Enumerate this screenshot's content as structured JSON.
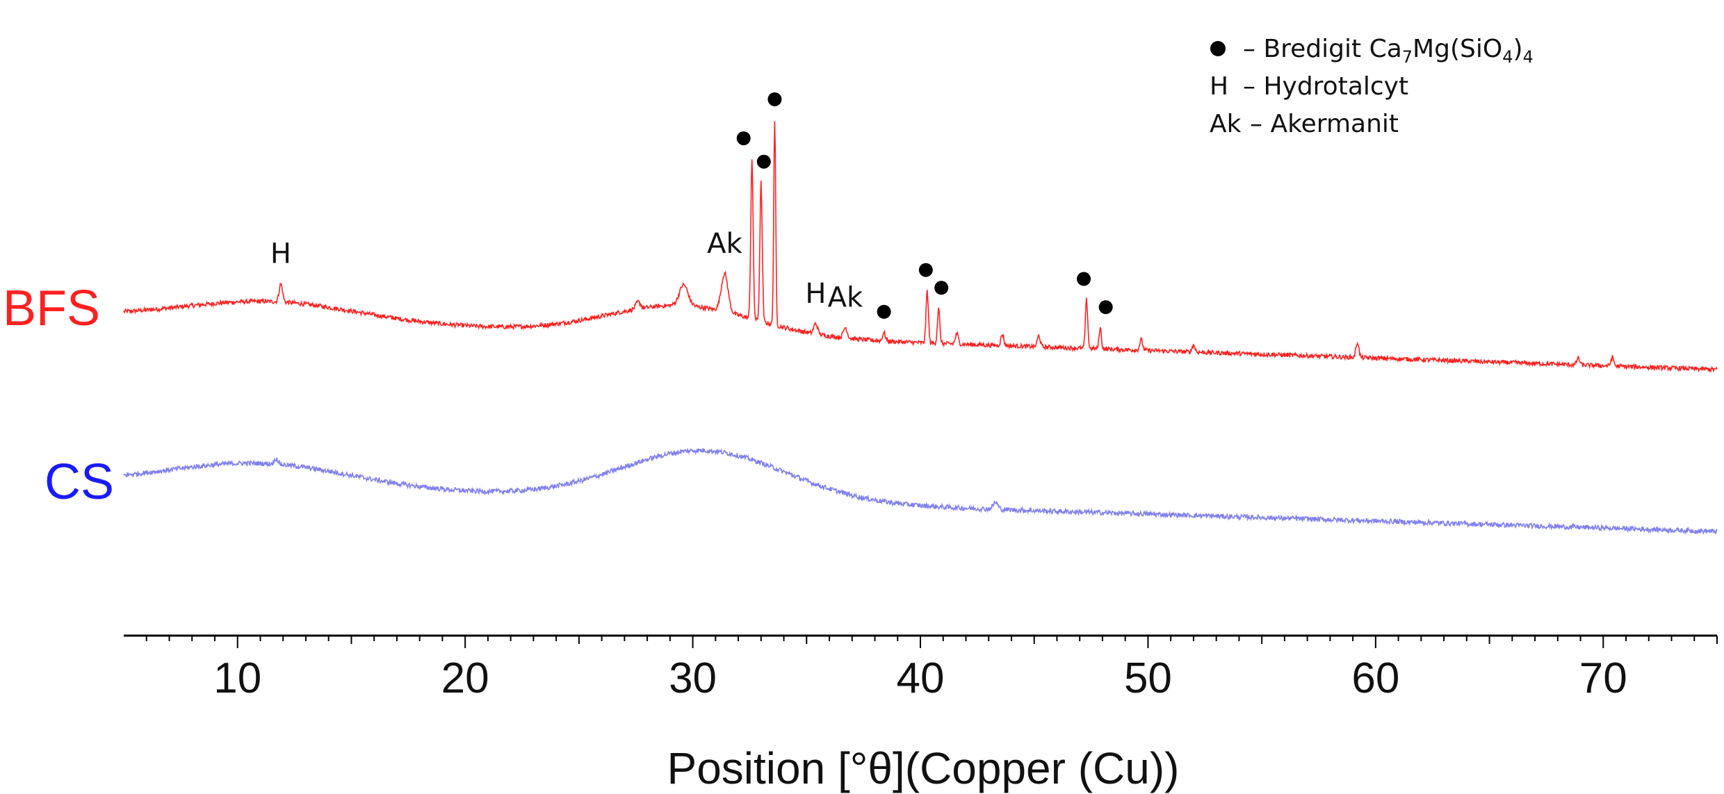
{
  "chart_data": {
    "type": "line",
    "xlabel": "Position [°θ](Copper (Cu))",
    "xlim": [
      5,
      75
    ],
    "x_ticks": [
      10,
      20,
      30,
      40,
      50,
      60,
      70
    ],
    "y_axis_shown": false,
    "grid": false,
    "colors": {
      "BFS": "#ff2020",
      "CS": "#8080f0"
    },
    "series": [
      {
        "name": "BFS",
        "peaks": [
          {
            "x": 11.9,
            "h": 0.26,
            "w": 0.18
          },
          {
            "x": 27.6,
            "h": 0.1,
            "w": 0.25
          },
          {
            "x": 29.6,
            "h": 0.3,
            "w": 0.45
          },
          {
            "x": 31.4,
            "h": 0.55,
            "w": 0.35
          },
          {
            "x": 32.6,
            "h": 2.3,
            "w": 0.12
          },
          {
            "x": 33.0,
            "h": 2.0,
            "w": 0.12
          },
          {
            "x": 33.6,
            "h": 2.95,
            "w": 0.1
          },
          {
            "x": 35.4,
            "h": 0.15,
            "w": 0.2
          },
          {
            "x": 36.7,
            "h": 0.15,
            "w": 0.2
          },
          {
            "x": 38.4,
            "h": 0.12,
            "w": 0.15
          },
          {
            "x": 40.3,
            "h": 0.75,
            "w": 0.12
          },
          {
            "x": 40.8,
            "h": 0.5,
            "w": 0.12
          },
          {
            "x": 41.6,
            "h": 0.15,
            "w": 0.15
          },
          {
            "x": 43.6,
            "h": 0.16,
            "w": 0.15
          },
          {
            "x": 45.2,
            "h": 0.16,
            "w": 0.15
          },
          {
            "x": 47.3,
            "h": 0.7,
            "w": 0.12
          },
          {
            "x": 47.9,
            "h": 0.3,
            "w": 0.12
          },
          {
            "x": 49.7,
            "h": 0.15,
            "w": 0.15
          },
          {
            "x": 52.0,
            "h": 0.1,
            "w": 0.15
          },
          {
            "x": 59.2,
            "h": 0.22,
            "w": 0.15
          },
          {
            "x": 68.9,
            "h": 0.1,
            "w": 0.15
          },
          {
            "x": 70.4,
            "h": 0.12,
            "w": 0.15
          }
        ]
      },
      {
        "name": "CS",
        "peaks": [
          {
            "x": 11.7,
            "h": 0.08,
            "w": 0.2
          },
          {
            "x": 43.3,
            "h": 0.1,
            "w": 0.25
          }
        ]
      }
    ],
    "annotations": [
      {
        "label": "H",
        "x": 11.9,
        "series": "BFS"
      },
      {
        "label": "Ak",
        "x": 31.4,
        "series": "BFS"
      },
      {
        "label": "●",
        "x": 32.6,
        "series": "BFS"
      },
      {
        "label": "●",
        "x": 33.0,
        "series": "BFS"
      },
      {
        "label": "●",
        "x": 33.6,
        "series": "BFS"
      },
      {
        "label": "H",
        "x": 35.4,
        "series": "BFS"
      },
      {
        "label": "Ak",
        "x": 36.7,
        "series": "BFS"
      },
      {
        "label": "●",
        "x": 38.4,
        "series": "BFS"
      },
      {
        "label": "●",
        "x": 40.3,
        "series": "BFS"
      },
      {
        "label": "●",
        "x": 40.8,
        "series": "BFS"
      },
      {
        "label": "●",
        "x": 47.3,
        "series": "BFS"
      },
      {
        "label": "●",
        "x": 47.9,
        "series": "BFS"
      }
    ],
    "legend": {
      "placement": "top-right",
      "entries": [
        {
          "symbol": "●",
          "text": "– Bredigit Ca",
          "formula": [
            [
              "7",
              "sub"
            ],
            [
              "Mg(SiO",
              ""
            ],
            [
              "4",
              "sub"
            ],
            [
              ")",
              ""
            ],
            [
              "4",
              "sub"
            ]
          ]
        },
        {
          "symbol": "H",
          "text": "– Hydrotalcyt"
        },
        {
          "symbol": "Ak",
          "text": "– Akermanit"
        }
      ]
    }
  }
}
